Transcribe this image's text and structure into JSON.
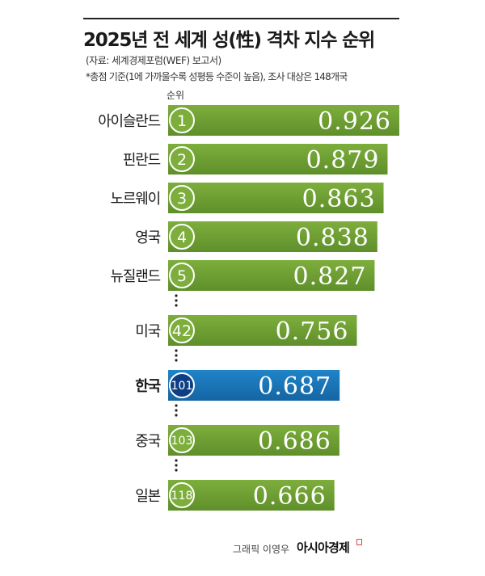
{
  "header": {
    "title": "2025년 전 세계 성(性) 격차 지수 순위",
    "source": "(자료: 세계경제포럼(WEF) 보고서)",
    "note": "*총점 기준(1에 가까울수록 성평등 수준이 높음), 조사 대상은 148개국",
    "rank_label": "순위"
  },
  "footer": {
    "credit": "그래픽 이영우",
    "brand": "아시아경제"
  },
  "colors": {
    "bar": "#7dae3c",
    "bar_dark": "#5f8f2a",
    "highlight": "#1f84c9",
    "highlight_dark": "#1565a3",
    "badge_highlight": "#0e3f86"
  },
  "chart_data": {
    "type": "bar",
    "orientation": "horizontal",
    "title": "2025년 전 세계 성(性) 격차 지수 순위",
    "categories": [
      "아이슬란드",
      "핀란드",
      "노르웨이",
      "영국",
      "뉴질랜드",
      "미국",
      "한국",
      "중국",
      "일본"
    ],
    "ranks": [
      "1",
      "2",
      "3",
      "4",
      "5",
      "42",
      "101",
      "103",
      "118"
    ],
    "values": [
      0.926,
      0.879,
      0.863,
      0.838,
      0.827,
      0.756,
      0.687,
      0.686,
      0.666
    ],
    "value_labels": [
      "0.926",
      "0.879",
      "0.863",
      "0.838",
      "0.827",
      "0.756",
      "0.687",
      "0.686",
      "0.666"
    ],
    "highlight": "한국",
    "gap_after_rank": [
      "5",
      "42",
      "101",
      "103"
    ],
    "xlabel": "",
    "ylabel": "순위"
  }
}
